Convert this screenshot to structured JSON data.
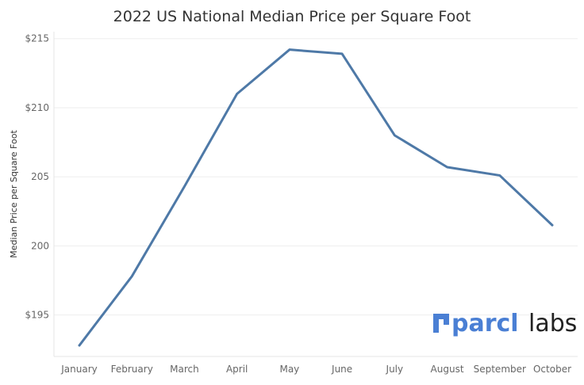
{
  "chart_data": {
    "type": "line",
    "title": "2022 US National Median Price per Square Foot",
    "xlabel": "",
    "ylabel": "Median Price per Square Foot",
    "categories": [
      "January",
      "February",
      "March",
      "April",
      "May",
      "June",
      "July",
      "August",
      "September",
      "October"
    ],
    "series": [
      {
        "name": "Median Price per Square Foot",
        "values": [
          192.8,
          197.8,
          204.3,
          211.0,
          214.2,
          213.9,
          208.0,
          205.7,
          205.1,
          201.5
        ]
      }
    ],
    "ylim": [
      192.0,
      215.5
    ],
    "yticks": [
      195,
      200,
      205,
      210,
      215
    ],
    "ytick_labels": [
      "$195",
      "200",
      "205",
      "$210",
      "$215"
    ],
    "grid": true,
    "line_color": "#4e79a7"
  },
  "watermark": {
    "brand": "parcl",
    "suffix": "labs",
    "brand_color": "#4a7fd4"
  }
}
